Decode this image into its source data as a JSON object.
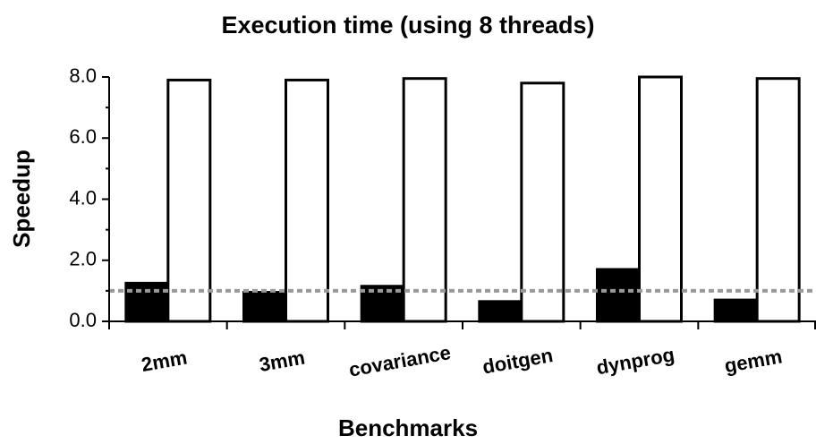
{
  "chart_data": {
    "type": "bar",
    "title": "Execution time (using 8 threads)",
    "x_label": "Benchmarks",
    "y_label": "Speedup",
    "categories": [
      "2mm",
      "3mm",
      "covariance",
      "doitgen",
      "dynprog",
      "gemm"
    ],
    "series": [
      {
        "color": "#000000",
        "values": [
          1.25,
          0.95,
          1.15,
          0.65,
          1.7,
          0.7
        ]
      },
      {
        "color": "#ffffff",
        "values": [
          7.9,
          7.9,
          7.95,
          7.8,
          8.0,
          7.95
        ]
      }
    ],
    "reference_line": {
      "value": 1,
      "color": "#999999"
    },
    "ylim": [
      0,
      8
    ],
    "yticks": [
      {
        "value": 0,
        "label": "0.0"
      },
      {
        "value": 2,
        "label": "2.0"
      },
      {
        "value": 4,
        "label": "4.0"
      },
      {
        "value": 6,
        "label": "6.0"
      },
      {
        "value": 8,
        "label": "8.0"
      }
    ],
    "yticks_minor": [
      1,
      3,
      5,
      7
    ],
    "grid": false
  }
}
